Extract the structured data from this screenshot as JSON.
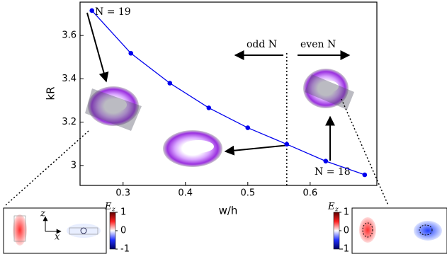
{
  "chart_data": {
    "type": "line",
    "x_label": "w/h",
    "y_label": "kR",
    "x": [
      0.25,
      0.3125,
      0.375,
      0.4375,
      0.5,
      0.5625,
      0.625,
      0.6875
    ],
    "series": [
      {
        "color": "#0000ee",
        "values": [
          3.715,
          3.518,
          3.38,
          3.266,
          3.174,
          3.098,
          3.02,
          2.957
        ]
      }
    ],
    "xlim": [
      0.231,
      0.707
    ],
    "ylim": [
      2.908,
      3.754
    ],
    "xticks": [
      0.3,
      0.4,
      0.5,
      0.6
    ],
    "yticks": [
      3.0,
      3.2,
      3.4,
      3.6
    ],
    "divider_x": 0.5625,
    "annotations": {
      "n19": "N = 19",
      "n18": "N = 18",
      "odd": "odd N",
      "even": "even N"
    }
  },
  "insets": [
    {
      "colorbar": {
        "symbol": "E",
        "subscript": "z",
        "clim": [
          -1,
          1
        ],
        "ticks": [
          1,
          0,
          -1
        ]
      },
      "axes": [
        "z",
        "x"
      ]
    },
    {
      "colorbar": {
        "symbol": "E",
        "subscript": "z",
        "clim": [
          -1,
          1
        ],
        "ticks": [
          1,
          0,
          -1
        ]
      }
    }
  ]
}
